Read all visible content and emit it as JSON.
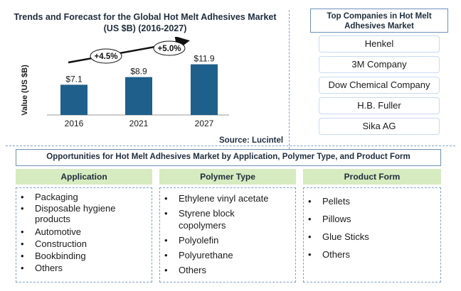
{
  "chart_data": {
    "type": "bar",
    "title": "Trends and Forecast for the Global Hot Melt Adhesives Market (US $B) (2016-2027)",
    "ylabel": "Value (US $B)",
    "categories": [
      "2016",
      "2021",
      "2027"
    ],
    "values": [
      7.1,
      8.9,
      11.9
    ],
    "value_labels": [
      "$7.1",
      "$8.9",
      "$11.9"
    ],
    "growth_labels": [
      "+4.5%",
      "+5.0%"
    ],
    "ylim": [
      0,
      14
    ],
    "bar_color": "#1f5f8b",
    "source": "Source: Lucintel"
  },
  "companies": {
    "header": "Top Companies in Hot Melt Adhesives Market",
    "items": [
      "Henkel",
      "3M Company",
      "Dow Chemical Company",
      "H.B. Fuller",
      "Sika AG"
    ]
  },
  "opportunities": {
    "header": "Opportunities for Hot Melt Adhesives Market by Application, Polymer Type, and Product Form",
    "columns": [
      {
        "title": "Application",
        "items": [
          "Packaging",
          "Disposable hygiene products",
          "Automotive",
          "Construction",
          "Bookbinding",
          "Others"
        ]
      },
      {
        "title": "Polymer Type",
        "items": [
          "Ethylene vinyl acetate",
          "Styrene block copolymers",
          "Polyolefin",
          "Polyurethane",
          "Others"
        ]
      },
      {
        "title": "Product Form",
        "items": [
          "Pellets",
          "Pillows",
          "Glue Sticks",
          "Others"
        ]
      }
    ]
  },
  "colors": {
    "accent_border": "#6d8fb9",
    "column_header": "#d6ebbf",
    "bar": "#1f5f8b"
  }
}
